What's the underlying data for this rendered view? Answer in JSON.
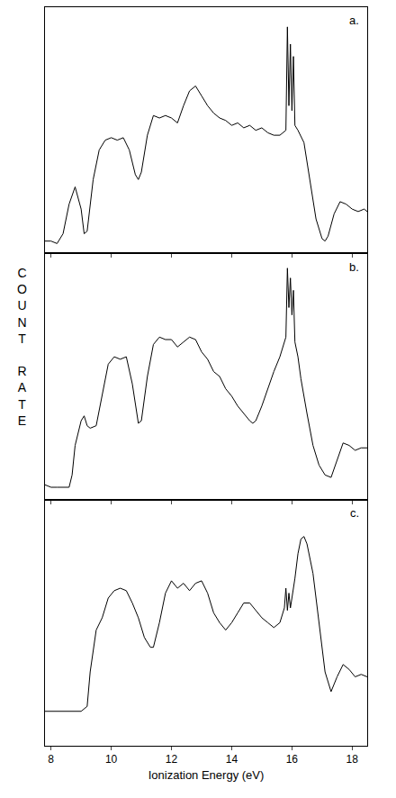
{
  "chart_data": [
    {
      "type": "line",
      "title": "a.",
      "color": "#000000",
      "grid": false,
      "tick_labels": false,
      "xlim": [
        7.8,
        18.5
      ],
      "xticks": [
        8,
        10,
        12,
        14,
        16,
        18
      ],
      "ylim": [
        0,
        100
      ],
      "x": [
        7.8,
        8.0,
        8.2,
        8.4,
        8.6,
        8.8,
        9.0,
        9.1,
        9.2,
        9.4,
        9.6,
        9.8,
        10.0,
        10.2,
        10.4,
        10.6,
        10.8,
        10.9,
        11.0,
        11.2,
        11.4,
        11.6,
        11.8,
        12.0,
        12.2,
        12.4,
        12.6,
        12.8,
        13.0,
        13.2,
        13.4,
        13.6,
        13.8,
        14.0,
        14.2,
        14.4,
        14.6,
        14.8,
        15.0,
        15.2,
        15.4,
        15.6,
        15.8,
        15.85,
        15.9,
        15.95,
        16.0,
        16.05,
        16.1,
        16.2,
        16.4,
        16.6,
        16.8,
        17.0,
        17.1,
        17.2,
        17.4,
        17.6,
        17.8,
        18.0,
        18.2,
        18.4,
        18.5
      ],
      "values": [
        5,
        5,
        4,
        8,
        20,
        27,
        18,
        8,
        9,
        30,
        42,
        46,
        47,
        46,
        47,
        42,
        32,
        30,
        33,
        48,
        56,
        55,
        56,
        55,
        53,
        60,
        66,
        68,
        64,
        60,
        57,
        55,
        54,
        52,
        53,
        51,
        52,
        50,
        51,
        49,
        48,
        48,
        50,
        92,
        60,
        85,
        58,
        80,
        52,
        50,
        45,
        30,
        14,
        6,
        5,
        7,
        16,
        21,
        20,
        18,
        17,
        18,
        17
      ]
    },
    {
      "type": "line",
      "title": "b.",
      "ylabel": "COUNT RATE",
      "color": "#000000",
      "grid": false,
      "tick_labels": false,
      "xlim": [
        7.8,
        18.5
      ],
      "xticks": [
        8,
        10,
        12,
        14,
        16,
        18
      ],
      "ylim": [
        0,
        100
      ],
      "x": [
        7.8,
        8.0,
        8.2,
        8.4,
        8.6,
        8.7,
        8.8,
        9.0,
        9.1,
        9.2,
        9.3,
        9.5,
        9.7,
        9.9,
        10.1,
        10.3,
        10.5,
        10.7,
        10.9,
        11.0,
        11.2,
        11.4,
        11.6,
        11.8,
        12.0,
        12.2,
        12.4,
        12.6,
        12.8,
        13.0,
        13.2,
        13.4,
        13.6,
        13.8,
        14.0,
        14.2,
        14.4,
        14.6,
        14.7,
        14.8,
        15.0,
        15.2,
        15.4,
        15.6,
        15.8,
        15.85,
        15.9,
        15.95,
        16.0,
        16.05,
        16.1,
        16.2,
        16.3,
        16.5,
        16.7,
        16.9,
        17.1,
        17.3,
        17.5,
        17.7,
        17.9,
        18.1,
        18.3,
        18.5
      ],
      "values": [
        6,
        5,
        5,
        5,
        5,
        10,
        22,
        32,
        34,
        30,
        29,
        30,
        42,
        55,
        58,
        57,
        58,
        47,
        31,
        32,
        50,
        63,
        66,
        65,
        65,
        62,
        64,
        66,
        65,
        60,
        57,
        52,
        50,
        45,
        42,
        38,
        35,
        32,
        31,
        32,
        38,
        45,
        52,
        58,
        66,
        94,
        78,
        90,
        75,
        85,
        64,
        58,
        49,
        35,
        22,
        14,
        10,
        9,
        16,
        23,
        22,
        20,
        21,
        21
      ]
    },
    {
      "type": "line",
      "title": "c.",
      "xlabel": "Ionization Energy (eV)",
      "color": "#000000",
      "grid": false,
      "tick_labels": "x",
      "xlim": [
        7.8,
        18.5
      ],
      "xticks": [
        8,
        10,
        12,
        14,
        16,
        18
      ],
      "ylim": [
        0,
        100
      ],
      "x": [
        7.8,
        8.0,
        8.4,
        8.8,
        9.0,
        9.2,
        9.3,
        9.5,
        9.7,
        9.9,
        10.1,
        10.3,
        10.5,
        10.7,
        10.9,
        11.1,
        11.3,
        11.4,
        11.6,
        11.8,
        12.0,
        12.2,
        12.4,
        12.6,
        12.8,
        13.0,
        13.2,
        13.4,
        13.6,
        13.8,
        14.0,
        14.2,
        14.4,
        14.6,
        14.8,
        15.0,
        15.2,
        15.4,
        15.6,
        15.75,
        15.8,
        15.85,
        15.9,
        15.95,
        16.0,
        16.1,
        16.2,
        16.3,
        16.4,
        16.5,
        16.7,
        16.9,
        17.1,
        17.3,
        17.5,
        17.7,
        17.9,
        18.1,
        18.3,
        18.5
      ],
      "values": [
        14,
        14,
        14,
        14,
        14,
        16,
        30,
        47,
        52,
        60,
        63,
        64,
        63,
        58,
        52,
        44,
        40,
        40,
        50,
        62,
        67,
        64,
        66,
        63,
        66,
        67,
        62,
        54,
        50,
        47,
        50,
        54,
        58,
        58,
        55,
        52,
        50,
        48,
        50,
        56,
        64,
        55,
        62,
        56,
        60,
        68,
        78,
        84,
        85,
        82,
        70,
        50,
        30,
        22,
        28,
        33,
        31,
        28,
        29,
        28
      ]
    }
  ]
}
